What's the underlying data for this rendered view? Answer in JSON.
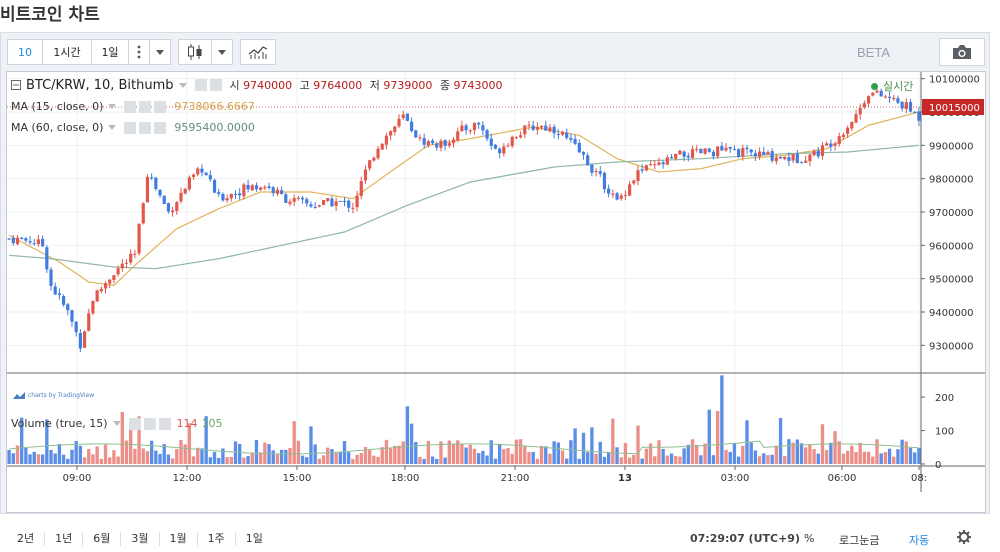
{
  "page_title": "비트코인 차트",
  "toolbar": {
    "interval_label": "10",
    "hour_label": "1시간",
    "day_label": "1일",
    "more_icon": "vertical-dots-icon",
    "dropdown_icon": "caret-down-icon",
    "candle_icon": "candlestick-icon",
    "indicator_icon": "indicator-chart-icon",
    "beta_label": "BETA",
    "camera_icon": "camera-icon"
  },
  "legend": {
    "symbol": "BTC/KRW, 10, Bithumb",
    "open_label": "시",
    "open": "9740000",
    "high_label": "고",
    "high": "9764000",
    "low_label": "저",
    "low": "9739000",
    "close_label": "종",
    "close": "9743000",
    "ma15_label": "MA (15, close, 0)",
    "ma15_value": "9738066.6667",
    "ma60_label": "MA (60, close, 0)",
    "ma60_value": "9595400.0000",
    "realtime_label": "실시간",
    "volume_label": "Volume (true, 15)",
    "vol_up": "114",
    "vol_down": "105",
    "attribution": "charts by TradingView"
  },
  "chart_data": {
    "type": "candlestick",
    "x_tick_labels": [
      "09:00",
      "12:00",
      "15:00",
      "18:00",
      "21:00",
      "13",
      "03:00",
      "06:00",
      "08:"
    ],
    "y_ticks": [
      9300000,
      9400000,
      9500000,
      9600000,
      9700000,
      9800000,
      9900000,
      10000000,
      10100000
    ],
    "y_tick_labels": [
      "9300000",
      "9400000",
      "9500000",
      "9600000",
      "9700000",
      "9800000",
      "9900000",
      "10000000",
      "10100000"
    ],
    "ylim": [
      9220000,
      10120000
    ],
    "last_price": 10015000,
    "last_price_label": "10015000",
    "volume_ticks": [
      0,
      100,
      200
    ],
    "volume_tick_labels": [
      "0",
      "100",
      "200"
    ],
    "volume_ylim": [
      0,
      260
    ],
    "price_anchors": [
      [
        0,
        9620000
      ],
      [
        5,
        9615000
      ],
      [
        8,
        9600000
      ],
      [
        10,
        9480000
      ],
      [
        14,
        9400000
      ],
      [
        17,
        9305000
      ],
      [
        20,
        9440000
      ],
      [
        25,
        9520000
      ],
      [
        30,
        9570000
      ],
      [
        33,
        9820000
      ],
      [
        38,
        9700000
      ],
      [
        43,
        9790000
      ],
      [
        46,
        9830000
      ],
      [
        50,
        9740000
      ],
      [
        56,
        9770000
      ],
      [
        61,
        9780000
      ],
      [
        66,
        9740000
      ],
      [
        72,
        9720000
      ],
      [
        78,
        9730000
      ],
      [
        82,
        9720000
      ],
      [
        85,
        9820000
      ],
      [
        88,
        9900000
      ],
      [
        94,
        9985000
      ],
      [
        98,
        9915000
      ],
      [
        103,
        9900000
      ],
      [
        108,
        9945000
      ],
      [
        112,
        9965000
      ],
      [
        116,
        9880000
      ],
      [
        121,
        9935000
      ],
      [
        126,
        9960000
      ],
      [
        131,
        9945000
      ],
      [
        136,
        9880000
      ],
      [
        141,
        9800000
      ],
      [
        145,
        9730000
      ],
      [
        150,
        9820000
      ],
      [
        155,
        9840000
      ],
      [
        160,
        9870000
      ],
      [
        170,
        9885000
      ],
      [
        180,
        9870000
      ],
      [
        188,
        9860000
      ],
      [
        193,
        9880000
      ],
      [
        198,
        9930000
      ],
      [
        202,
        9990000
      ],
      [
        205,
        10060000
      ],
      [
        210,
        10040000
      ],
      [
        214,
        10015000
      ],
      [
        217,
        9985000
      ]
    ],
    "ma15_anchors": [
      [
        0,
        9630000
      ],
      [
        12,
        9550000
      ],
      [
        19,
        9490000
      ],
      [
        25,
        9480000
      ],
      [
        30,
        9540000
      ],
      [
        40,
        9650000
      ],
      [
        50,
        9710000
      ],
      [
        60,
        9760000
      ],
      [
        72,
        9760000
      ],
      [
        82,
        9740000
      ],
      [
        92,
        9830000
      ],
      [
        100,
        9900000
      ],
      [
        110,
        9920000
      ],
      [
        125,
        9955000
      ],
      [
        136,
        9930000
      ],
      [
        145,
        9860000
      ],
      [
        155,
        9820000
      ],
      [
        165,
        9830000
      ],
      [
        175,
        9860000
      ],
      [
        185,
        9870000
      ],
      [
        195,
        9890000
      ],
      [
        205,
        9960000
      ],
      [
        217,
        10000000
      ]
    ],
    "ma60_anchors": [
      [
        0,
        9570000
      ],
      [
        10,
        9560000
      ],
      [
        25,
        9535000
      ],
      [
        35,
        9530000
      ],
      [
        50,
        9560000
      ],
      [
        65,
        9600000
      ],
      [
        80,
        9640000
      ],
      [
        95,
        9720000
      ],
      [
        110,
        9790000
      ],
      [
        130,
        9835000
      ],
      [
        145,
        9850000
      ],
      [
        165,
        9860000
      ],
      [
        185,
        9875000
      ],
      [
        200,
        9880000
      ],
      [
        217,
        9900000
      ]
    ]
  },
  "bottom": {
    "ranges": [
      "2년",
      "1년",
      "6월",
      "3월",
      "1월",
      "1주",
      "1일"
    ],
    "time": "07:29:07 (UTC+9)",
    "percent": "%",
    "log": "로그눈금",
    "auto": "자동",
    "settings_icon": "gear-icon"
  },
  "colors": {
    "up": "#e2574c",
    "down": "#3f7be0",
    "ma15": "#e0b45a",
    "ma60": "#8fb6a8",
    "accent": "#1e88e5",
    "price_tag": "#c62828"
  }
}
